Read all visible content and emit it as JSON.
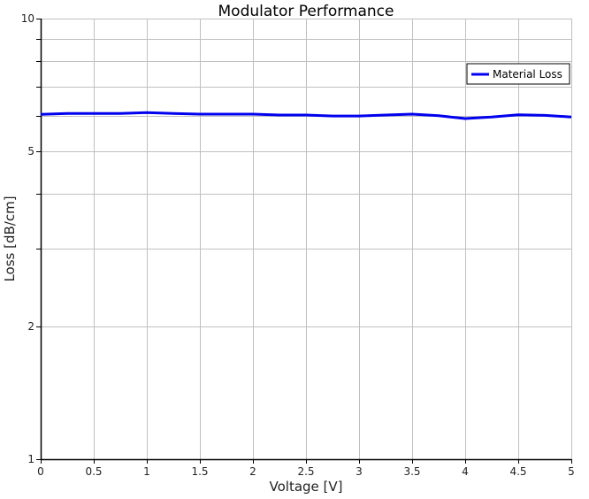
{
  "chart_data": {
    "type": "line",
    "title": "Modulator Performance",
    "xlabel": "Voltage [V]",
    "ylabel": "Loss [dB/cm]",
    "xlim": [
      0,
      5
    ],
    "ylim": [
      1,
      10
    ],
    "yscale": "log",
    "grid": true,
    "legend_position": "upper right",
    "x_ticks": [
      0,
      0.5,
      1,
      1.5,
      2,
      2.5,
      3,
      3.5,
      4,
      4.5,
      5
    ],
    "x_tick_labels": [
      "0",
      "0.5",
      "1",
      "1.5",
      "2",
      "2.5",
      "3",
      "3.5",
      "4",
      "4.5",
      "5"
    ],
    "y_major_ticks": [
      1,
      2,
      5,
      10
    ],
    "y_tick_labels": [
      "1",
      "2",
      "5",
      "10"
    ],
    "y_minor_ticks": [
      3,
      4,
      6,
      7,
      8,
      9
    ],
    "x": [
      0,
      0.25,
      0.5,
      0.75,
      1.0,
      1.25,
      1.5,
      1.75,
      2.0,
      2.25,
      2.5,
      2.75,
      3.0,
      3.25,
      3.5,
      3.75,
      4.0,
      4.25,
      4.5,
      4.75,
      5.0
    ],
    "series": [
      {
        "name": "Material Loss",
        "color": "#0000ee",
        "values": [
          6.06,
          6.09,
          6.09,
          6.09,
          6.12,
          6.09,
          6.07,
          6.07,
          6.07,
          6.04,
          6.04,
          6.01,
          6.01,
          6.04,
          6.07,
          6.02,
          5.93,
          5.98,
          6.05,
          6.03,
          5.98
        ]
      }
    ]
  },
  "colors": {
    "grid": "#c0c0c0",
    "axis": "#000000",
    "background": "#ffffff"
  }
}
